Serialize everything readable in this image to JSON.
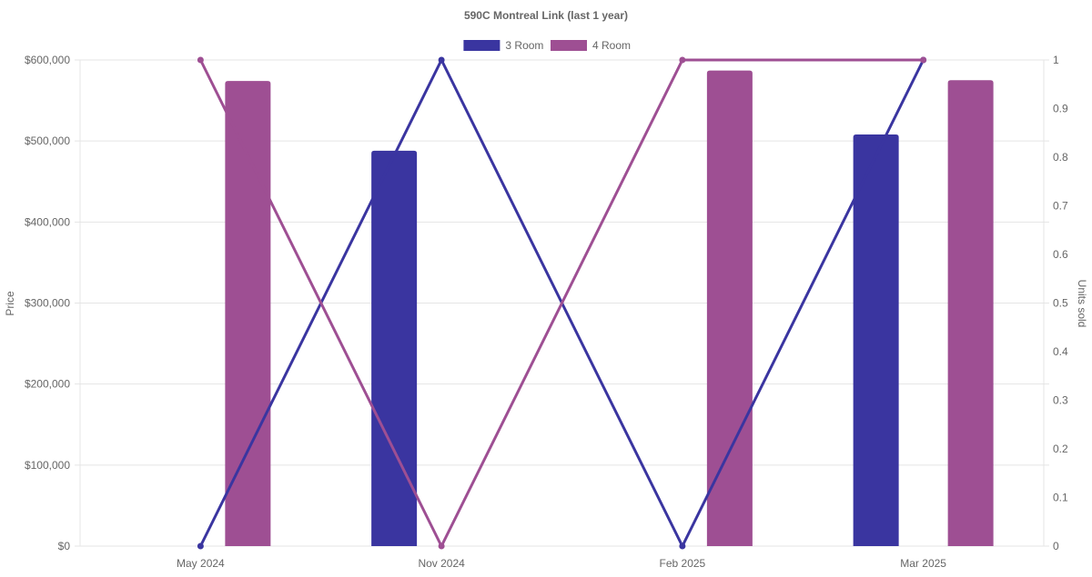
{
  "chart_data": {
    "type": "bar",
    "title": "590C Montreal Link (last 1 year)",
    "categories": [
      "May 2024",
      "Nov 2024",
      "Feb 2025",
      "Mar 2025"
    ],
    "y_left": {
      "label": "Price",
      "ticks": [
        "$0",
        "$100,000",
        "$200,000",
        "$300,000",
        "$400,000",
        "$500,000",
        "$600,000"
      ],
      "range": [
        0,
        600000
      ]
    },
    "y_right": {
      "label": "Units sold",
      "ticks": [
        "0",
        "0.1",
        "0.2",
        "0.3",
        "0.4",
        "0.5",
        "0.6",
        "0.7",
        "0.8",
        "0.9",
        "1"
      ],
      "range": [
        0,
        1
      ]
    },
    "legend": {
      "position": "top"
    },
    "series": [
      {
        "name": "3 Room",
        "color": "#3a35a0",
        "price": [
          null,
          488000,
          null,
          508000
        ],
        "units_sold": [
          0,
          1,
          0,
          1
        ]
      },
      {
        "name": "4 Room",
        "color": "#9e4f93",
        "price": [
          574000,
          null,
          587000,
          575000
        ],
        "units_sold": [
          1,
          0,
          1,
          1
        ]
      }
    ]
  }
}
